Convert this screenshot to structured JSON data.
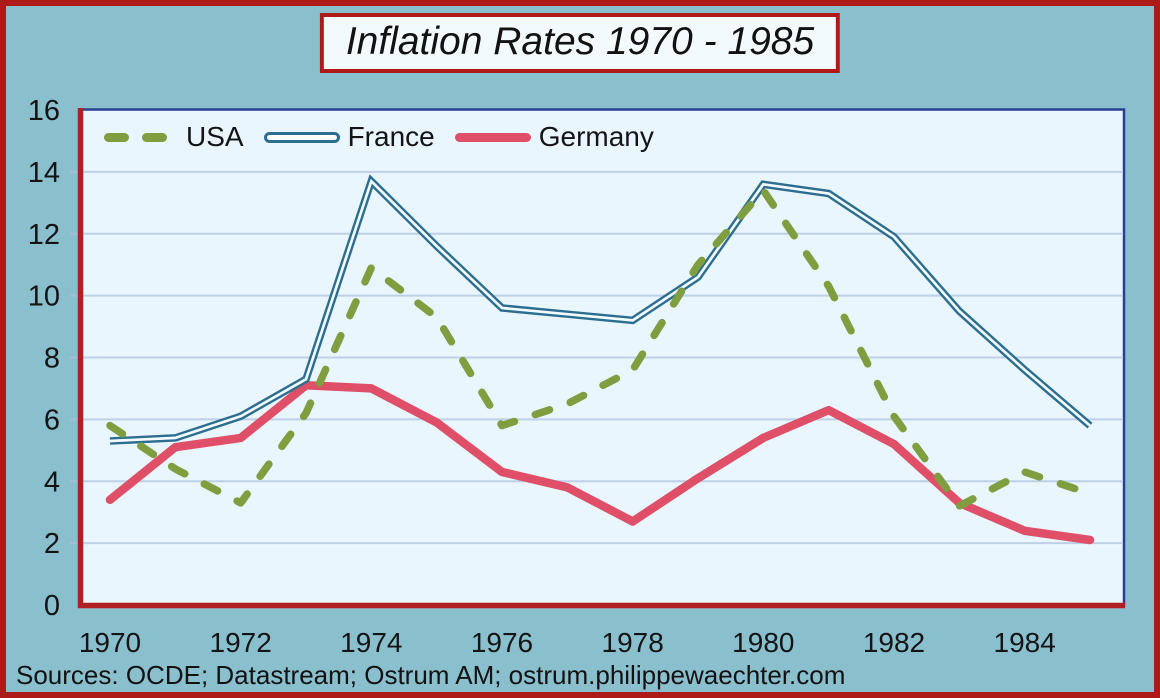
{
  "title": "Inflation Rates 1970 - 1985",
  "source": "Sources: OCDE; Datastream; Ostrum AM; ostrum.philippewaechter.com",
  "colors": {
    "frame_border": "#ae1a17",
    "page_bg": "#8abfce",
    "plot_bg": "#eaf6fd",
    "plot_border": "#2a3f94",
    "axis_line": "#b02023",
    "gridline": "#bdd0e8",
    "tick": "#a7bcd8",
    "text": "#141414",
    "title_bg": "#f3fafd"
  },
  "chart_data": {
    "type": "line",
    "title": "Inflation Rates 1970 - 1985",
    "x": [
      1970,
      1971,
      1972,
      1973,
      1974,
      1975,
      1976,
      1977,
      1978,
      1979,
      1980,
      1981,
      1982,
      1983,
      1984,
      1985
    ],
    "series": [
      {
        "name": "USA",
        "color": "#7e9e3f",
        "style": "dashed",
        "values": [
          5.8,
          4.4,
          3.3,
          6.2,
          10.9,
          9.3,
          5.8,
          6.5,
          7.6,
          11.0,
          13.4,
          10.3,
          6.1,
          3.2,
          4.3,
          3.6
        ]
      },
      {
        "name": "France",
        "color": "#2c6e90",
        "style": "hollow",
        "inner_color": "#f4fbfe",
        "values": [
          5.3,
          5.4,
          6.1,
          7.3,
          13.7,
          11.6,
          9.6,
          9.4,
          9.2,
          10.6,
          13.6,
          13.3,
          11.9,
          9.5,
          7.6,
          5.8
        ]
      },
      {
        "name": "Germany",
        "color": "#e04f68",
        "style": "solid",
        "values": [
          3.4,
          5.1,
          5.4,
          7.1,
          7.0,
          5.9,
          4.3,
          3.8,
          2.7,
          4.1,
          5.4,
          6.3,
          5.2,
          3.3,
          2.4,
          2.1
        ]
      }
    ],
    "xlabel": "",
    "ylabel": "",
    "xlim": [
      1970,
      1985
    ],
    "ylim": [
      0,
      16
    ],
    "y_ticks": [
      0,
      2,
      4,
      6,
      8,
      10,
      12,
      14,
      16
    ],
    "x_ticks": [
      1970,
      1972,
      1974,
      1976,
      1978,
      1980,
      1982,
      1984
    ],
    "grid": "horizontal",
    "legend_position": "top-left-inside"
  }
}
